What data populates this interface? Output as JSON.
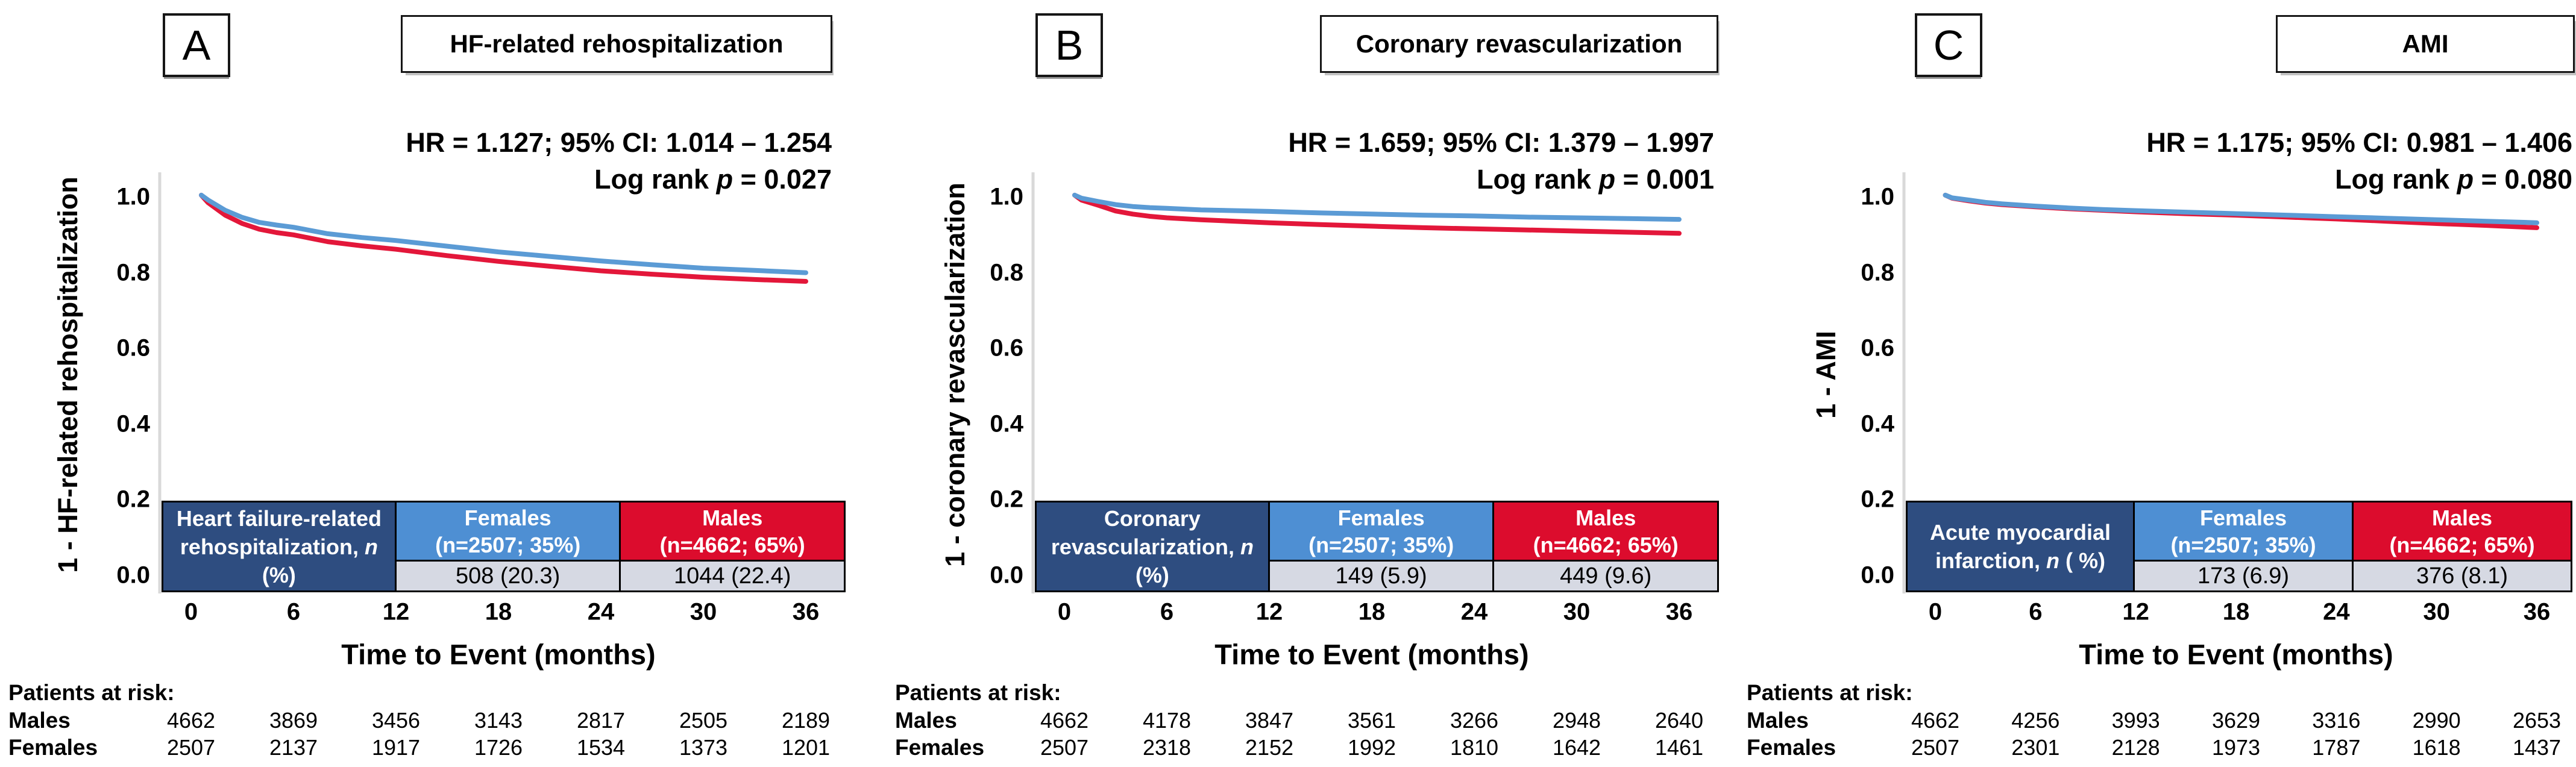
{
  "figure": {
    "x_axis_title": "Time to Event (months)",
    "x_ticks": [
      "0",
      "6",
      "12",
      "18",
      "24",
      "30",
      "36"
    ],
    "y_ticks": [
      "1.0",
      "0.8",
      "0.6",
      "0.4",
      "0.2",
      "0.0"
    ],
    "patients_at_risk_label": "Patients at risk:",
    "colors": {
      "navy_cell": "#2E4D80",
      "female_blue_cell": "#4E8FD3",
      "male_red_cell": "#DC0C2D",
      "value_cell_bg": "#D6D9E3",
      "axis_gray": "#D9D9D9",
      "curve_female_blue": "#5B9BD5",
      "curve_male_red": "#E3173A"
    }
  },
  "panels": [
    {
      "letter": "A",
      "title": "HF-related rehospitalization",
      "hr_text": "HR = 1.127; 95% CI: 1.014 – 1.254",
      "logrank_prefix": "Log rank ",
      "logrank_p": "p",
      "logrank_suffix": " = 0.027",
      "y_axis_label": "1 - HF-related rehospitalization",
      "table": {
        "label_pre": "Heart failure-related rehospitalization, ",
        "label_n": "n",
        "label_post": " (%)",
        "females_name": "Females",
        "females_n": "(n=2507; 35%)",
        "females_value": "508 (20.3)",
        "males_name": "Males",
        "males_n": "(n=4662; 65%)",
        "males_value": "1044 (22.4)"
      },
      "risk": {
        "rows": [
          {
            "label": "Males",
            "counts": [
              "4662",
              "3869",
              "3456",
              "3143",
              "2817",
              "2505",
              "2189"
            ]
          },
          {
            "label": "Females",
            "counts": [
              "2507",
              "2137",
              "1917",
              "1726",
              "1534",
              "1373",
              "1201"
            ]
          }
        ]
      }
    },
    {
      "letter": "B",
      "title": "Coronary revascularization",
      "hr_text": "HR = 1.659; 95% CI: 1.379 – 1.997",
      "logrank_prefix": "Log rank ",
      "logrank_p": "p",
      "logrank_suffix": " = 0.001",
      "y_axis_label": "1 - coronary revascularization",
      "table": {
        "label_pre": "Coronary revascularization, ",
        "label_n": "n",
        "label_post": " (%)",
        "females_name": "Females",
        "females_n": "(n=2507; 35%)",
        "females_value": "149 (5.9)",
        "males_name": "Males",
        "males_n": "(n=4662; 65%)",
        "males_value": "449 (9.6)"
      },
      "risk": {
        "rows": [
          {
            "label": "Males",
            "counts": [
              "4662",
              "4178",
              "3847",
              "3561",
              "3266",
              "2948",
              "2640"
            ]
          },
          {
            "label": "Females",
            "counts": [
              "2507",
              "2318",
              "2152",
              "1992",
              "1810",
              "1642",
              "1461"
            ]
          }
        ]
      }
    },
    {
      "letter": "C",
      "title": "AMI",
      "hr_text": "HR = 1.175; 95% CI: 0.981 – 1.406",
      "logrank_prefix": "Log rank ",
      "logrank_p": "p",
      "logrank_suffix": " = 0.080",
      "y_axis_label": "1 - AMI",
      "table": {
        "label_pre": "Acute myocardial infarction, ",
        "label_n": "n",
        "label_post": " ( %)",
        "females_name": "Females",
        "females_n": "(n=2507; 35%)",
        "females_value": "173 (6.9)",
        "males_name": "Males",
        "males_n": "(n=4662; 65%)",
        "males_value": "376 (8.1)"
      },
      "risk": {
        "rows": [
          {
            "label": "Males",
            "counts": [
              "4662",
              "4256",
              "3993",
              "3629",
              "3316",
              "2990",
              "2653"
            ]
          },
          {
            "label": "Females",
            "counts": [
              "2507",
              "2301",
              "2128",
              "1973",
              "1787",
              "1618",
              "1437"
            ]
          }
        ]
      }
    }
  ],
  "chart_data": [
    {
      "type": "line",
      "title": "HF-related rehospitalization",
      "xlabel": "Time to Event (months)",
      "ylabel": "1 - HF-related rehospitalization",
      "xlim": [
        0,
        36
      ],
      "ylim": [
        0.0,
        1.0
      ],
      "x_tick_values": [
        0,
        6,
        12,
        18,
        24,
        30,
        36
      ],
      "y_tick_values": [
        1.0,
        0.8,
        0.6,
        0.4,
        0.2,
        0.0
      ],
      "grid": false,
      "legend": "none",
      "hr_annotation": "HR = 1.127; 95% CI: 1.014 – 1.254",
      "log_rank_p": 0.027,
      "series": [
        {
          "name": "Males",
          "color": "#E3173A",
          "x": [
            0.6,
            1,
            2,
            3,
            4,
            5,
            6,
            8,
            10,
            12,
            15,
            18,
            21,
            24,
            27,
            30,
            33,
            36
          ],
          "y": [
            1.005,
            0.985,
            0.952,
            0.93,
            0.915,
            0.906,
            0.9,
            0.882,
            0.871,
            0.862,
            0.845,
            0.83,
            0.817,
            0.805,
            0.796,
            0.788,
            0.782,
            0.777
          ]
        },
        {
          "name": "Females",
          "color": "#5B9BD5",
          "x": [
            0.6,
            1,
            2,
            3,
            4,
            5,
            6,
            8,
            10,
            12,
            15,
            18,
            21,
            24,
            27,
            30,
            33,
            36
          ],
          "y": [
            1.005,
            0.992,
            0.965,
            0.946,
            0.933,
            0.926,
            0.92,
            0.903,
            0.893,
            0.885,
            0.87,
            0.855,
            0.843,
            0.831,
            0.821,
            0.812,
            0.806,
            0.8
          ]
        }
      ]
    },
    {
      "type": "line",
      "title": "Coronary revascularization",
      "xlabel": "Time to Event (months)",
      "ylabel": "1 - coronary revascularization",
      "xlim": [
        0,
        36
      ],
      "ylim": [
        0.0,
        1.0
      ],
      "x_tick_values": [
        0,
        6,
        12,
        18,
        24,
        30,
        36
      ],
      "y_tick_values": [
        1.0,
        0.8,
        0.6,
        0.4,
        0.2,
        0.0
      ],
      "grid": false,
      "legend": "none",
      "hr_annotation": "HR = 1.659; 95% CI: 1.379 – 1.997",
      "log_rank_p": 0.001,
      "series": [
        {
          "name": "Males",
          "color": "#E3173A",
          "x": [
            0.6,
            1,
            2,
            3,
            4,
            5,
            6,
            8,
            10,
            12,
            15,
            18,
            21,
            24,
            27,
            30,
            33,
            36
          ],
          "y": [
            1.005,
            0.992,
            0.978,
            0.963,
            0.955,
            0.949,
            0.945,
            0.94,
            0.936,
            0.932,
            0.927,
            0.923,
            0.919,
            0.916,
            0.913,
            0.91,
            0.907,
            0.904
          ]
        },
        {
          "name": "Females",
          "color": "#5B9BD5",
          "x": [
            0.6,
            1,
            2,
            3,
            4,
            5,
            6,
            8,
            10,
            12,
            15,
            18,
            21,
            24,
            27,
            30,
            33,
            36
          ],
          "y": [
            1.005,
            0.997,
            0.988,
            0.98,
            0.975,
            0.972,
            0.97,
            0.966,
            0.964,
            0.962,
            0.958,
            0.955,
            0.952,
            0.95,
            0.947,
            0.945,
            0.943,
            0.941
          ]
        }
      ]
    },
    {
      "type": "line",
      "title": "AMI",
      "xlabel": "Time to Event (months)",
      "ylabel": "1 - AMI",
      "xlim": [
        0,
        36
      ],
      "ylim": [
        0.0,
        1.0
      ],
      "x_tick_values": [
        0,
        6,
        12,
        18,
        24,
        30,
        36
      ],
      "y_tick_values": [
        1.0,
        0.8,
        0.6,
        0.4,
        0.2,
        0.0
      ],
      "grid": false,
      "legend": "none",
      "hr_annotation": "HR = 1.175; 95% CI: 0.981 – 1.406",
      "log_rank_p": 0.08,
      "series": [
        {
          "name": "Males",
          "color": "#E3173A",
          "x": [
            0.6,
            1,
            2,
            3,
            4,
            5,
            6,
            8,
            10,
            12,
            15,
            18,
            21,
            24,
            27,
            30,
            33,
            36
          ],
          "y": [
            1.005,
            0.997,
            0.99,
            0.984,
            0.98,
            0.977,
            0.974,
            0.969,
            0.965,
            0.961,
            0.956,
            0.952,
            0.947,
            0.942,
            0.936,
            0.93,
            0.925,
            0.919
          ]
        },
        {
          "name": "Females",
          "color": "#5B9BD5",
          "x": [
            0.6,
            1,
            2,
            3,
            4,
            5,
            6,
            8,
            10,
            12,
            15,
            18,
            21,
            24,
            27,
            30,
            33,
            36
          ],
          "y": [
            1.005,
            0.998,
            0.992,
            0.986,
            0.982,
            0.979,
            0.976,
            0.971,
            0.967,
            0.964,
            0.96,
            0.956,
            0.952,
            0.948,
            0.944,
            0.94,
            0.936,
            0.932
          ]
        }
      ]
    }
  ]
}
